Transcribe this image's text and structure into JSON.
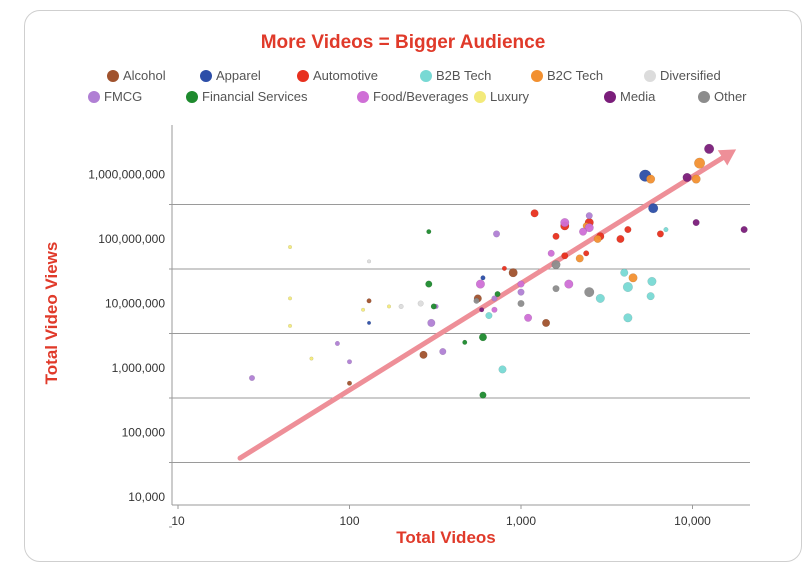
{
  "chart_data": {
    "type": "scatter",
    "title": "More Videos = Bigger Audience",
    "xlabel": "Total Videos",
    "ylabel": "Total Video Views",
    "x_scale": "log",
    "y_scale": "log",
    "xlim": [
      10,
      20000
    ],
    "ylim": [
      10000,
      5000000000
    ],
    "x_ticks": [
      {
        "value": 10,
        "label": "10"
      },
      {
        "value": 100,
        "label": "100"
      },
      {
        "value": 1000,
        "label": "1,000"
      },
      {
        "value": 10000,
        "label": "10,000"
      }
    ],
    "y_ticks": [
      {
        "value": 10000,
        "label": "10,000"
      },
      {
        "value": 100000,
        "label": "100,000"
      },
      {
        "value": 1000000,
        "label": "1,000,000"
      },
      {
        "value": 10000000,
        "label": "10,000,000"
      },
      {
        "value": 100000000,
        "label": "100,000,000"
      },
      {
        "value": 1000000000,
        "label": "1,000,000,000"
      }
    ],
    "grid": "horizontal",
    "legend_placement": "top",
    "categories": [
      {
        "name": "Alcohol",
        "color": "#a0522d"
      },
      {
        "name": "Apparel",
        "color": "#2c4ea8"
      },
      {
        "name": "Automotive",
        "color": "#e8301e"
      },
      {
        "name": "B2B Tech",
        "color": "#78d9d4"
      },
      {
        "name": "B2C Tech",
        "color": "#f29030"
      },
      {
        "name": "Diversified",
        "color": "#dcdcdc"
      },
      {
        "name": "FMCG",
        "color": "#b07fd4"
      },
      {
        "name": "Financial Services",
        "color": "#1e8a2e"
      },
      {
        "name": "Food/Beverages",
        "color": "#cf6fd6"
      },
      {
        "name": "Luxury",
        "color": "#f3ea7a"
      },
      {
        "name": "Media",
        "color": "#7a1d7a"
      },
      {
        "name": "Other",
        "color": "#8c8c8c"
      }
    ],
    "trend_arrow": {
      "from": [
        23,
        40000
      ],
      "to": [
        20000,
        3500000000
      ],
      "color": "#ee8f98"
    },
    "series": [
      {
        "name": "Alcohol",
        "points": [
          [
            100,
            580000,
            3
          ],
          [
            270,
            1600000,
            6
          ],
          [
            560,
            12000000,
            6
          ],
          [
            900,
            30000000,
            7
          ],
          [
            1400,
            5000000,
            6
          ],
          [
            130,
            11000000,
            3
          ]
        ]
      },
      {
        "name": "Apparel",
        "points": [
          [
            5300,
            960000000,
            10
          ],
          [
            5900,
            300000000,
            8
          ],
          [
            130,
            5000000,
            2
          ],
          [
            600,
            25000000,
            3
          ]
        ]
      },
      {
        "name": "Automotive",
        "points": [
          [
            1200,
            250000000,
            6
          ],
          [
            1800,
            160000000,
            7
          ],
          [
            2500,
            180000000,
            7
          ],
          [
            2900,
            110000000,
            6
          ],
          [
            3800,
            100000000,
            6
          ],
          [
            4200,
            140000000,
            5
          ],
          [
            6500,
            120000000,
            5
          ],
          [
            1800,
            55000000,
            5
          ],
          [
            1600,
            110000000,
            5
          ],
          [
            2400,
            60000000,
            4
          ],
          [
            800,
            35000000,
            3
          ]
        ]
      },
      {
        "name": "B2B Tech",
        "points": [
          [
            4000,
            30000000,
            6
          ],
          [
            4200,
            18000000,
            8
          ],
          [
            5800,
            22000000,
            7
          ],
          [
            5700,
            13000000,
            6
          ],
          [
            4200,
            6000000,
            7
          ],
          [
            2900,
            12000000,
            7
          ],
          [
            780,
            950000,
            6
          ],
          [
            650,
            6500000,
            5
          ],
          [
            7000,
            140000000,
            3
          ]
        ]
      },
      {
        "name": "B2C Tech",
        "points": [
          [
            11000,
            1500000000,
            9
          ],
          [
            5700,
            850000000,
            7
          ],
          [
            10500,
            850000000,
            7
          ],
          [
            2800,
            100000000,
            6
          ],
          [
            2200,
            50000000,
            6
          ],
          [
            4500,
            25000000,
            7
          ],
          [
            2400,
            160000000,
            5
          ]
        ]
      },
      {
        "name": "Diversified",
        "points": [
          [
            260,
            10000000,
            4
          ],
          [
            200,
            9000000,
            3
          ],
          [
            130,
            45000000,
            2
          ]
        ]
      },
      {
        "name": "FMCG",
        "points": [
          [
            720,
            120000000,
            5
          ],
          [
            1000,
            15000000,
            5
          ],
          [
            700,
            12000000,
            4
          ],
          [
            320,
            9000000,
            3
          ],
          [
            85,
            2400000,
            3
          ],
          [
            100,
            1250000,
            3
          ],
          [
            27,
            700000,
            4
          ],
          [
            350,
            1800000,
            5
          ],
          [
            300,
            5000000,
            6
          ],
          [
            2500,
            230000000,
            5
          ]
        ]
      },
      {
        "name": "Financial Services",
        "points": [
          [
            600,
            380000,
            5
          ],
          [
            600,
            3000000,
            6
          ],
          [
            290,
            20000000,
            5
          ],
          [
            310,
            9000000,
            4
          ],
          [
            290,
            130000000,
            3
          ],
          [
            730,
            14000000,
            4
          ],
          [
            470,
            2500000,
            3
          ]
        ]
      },
      {
        "name": "Food/Beverages",
        "points": [
          [
            580,
            20000000,
            7
          ],
          [
            1000,
            20000000,
            5
          ],
          [
            1900,
            20000000,
            7
          ],
          [
            1100,
            6000000,
            6
          ],
          [
            2500,
            150000000,
            7
          ],
          [
            2300,
            130000000,
            6
          ],
          [
            1800,
            180000000,
            7
          ],
          [
            1500,
            60000000,
            5
          ],
          [
            700,
            8000000,
            4
          ]
        ]
      },
      {
        "name": "Luxury",
        "points": [
          [
            45,
            75000000,
            2
          ],
          [
            45,
            12000000,
            2
          ],
          [
            45,
            4500000,
            2
          ],
          [
            60,
            1400000,
            2
          ],
          [
            120,
            8000000,
            2
          ],
          [
            170,
            9000000,
            2
          ]
        ]
      },
      {
        "name": "Media",
        "points": [
          [
            12500,
            2500000000,
            8
          ],
          [
            9300,
            900000000,
            7
          ],
          [
            10500,
            180000000,
            5
          ],
          [
            20000,
            140000000,
            5
          ],
          [
            590,
            8000000,
            3
          ]
        ]
      },
      {
        "name": "Other",
        "points": [
          [
            2500,
            15000000,
            8
          ],
          [
            1600,
            40000000,
            7
          ],
          [
            1000,
            10000000,
            5
          ],
          [
            1600,
            17000000,
            5
          ],
          [
            550,
            11000000,
            4
          ]
        ]
      }
    ]
  }
}
